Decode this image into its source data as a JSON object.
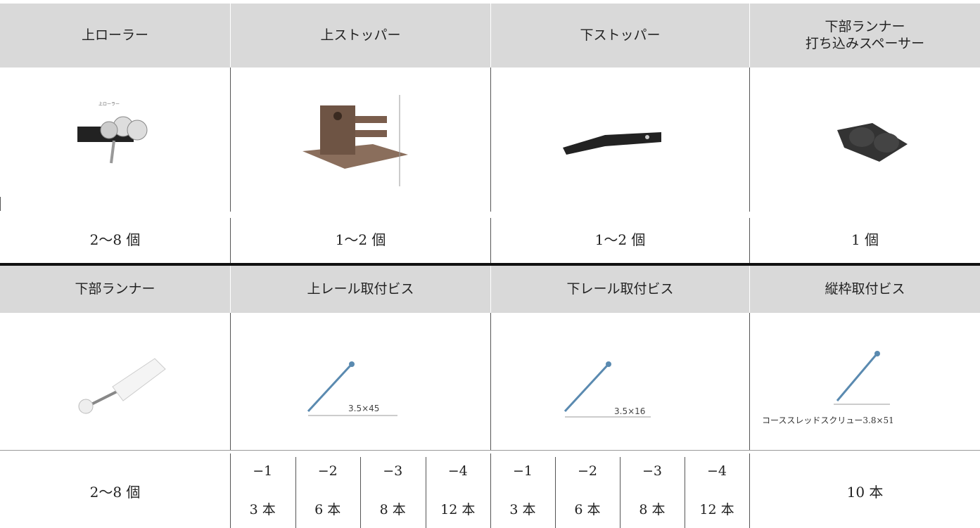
{
  "section1": {
    "headers": [
      "上ローラー",
      "上ストッパー",
      "下ストッパー",
      "下部ランナー\n打ち込みスペーサー"
    ],
    "image_label": "上ローラー",
    "quantities": [
      "2〜8 個",
      "1〜2 個",
      "1〜2 個",
      "1 個"
    ]
  },
  "section2": {
    "headers": [
      "下部ランナー",
      "上レール取付ビス",
      "下レール取付ビス",
      "縦枠取付ビス"
    ],
    "image_labels": [
      "3.5×45",
      "3.5×16",
      "コーススレッドスクリュー3.8×51"
    ],
    "quantity_left": "2〜8 個",
    "upper_rail": {
      "codes": [
        "−1",
        "−2",
        "−3",
        "−4"
      ],
      "counts": [
        "3 本",
        "6 本",
        "8 本",
        "12 本"
      ]
    },
    "lower_rail": {
      "codes": [
        "−1",
        "−2",
        "−3",
        "−4"
      ],
      "counts": [
        "3 本",
        "6 本",
        "8 本",
        "12 本"
      ]
    },
    "quantity_right": "10 本"
  }
}
